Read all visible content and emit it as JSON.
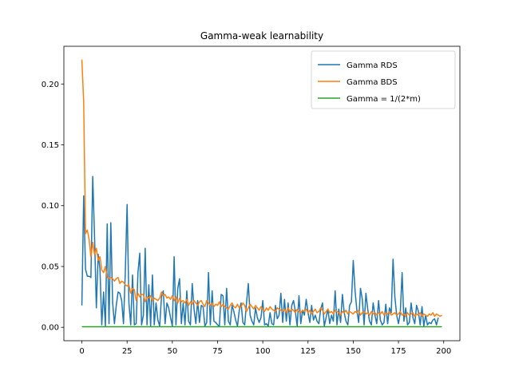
{
  "chart_data": {
    "type": "line",
    "title": "Gamma-weak learnability",
    "xlabel": "",
    "ylabel": "",
    "xlim": [
      -9.95,
      208.95
    ],
    "ylim": [
      -0.011,
      0.231
    ],
    "xticks": [
      0,
      25,
      50,
      75,
      100,
      125,
      150,
      175,
      200
    ],
    "xtick_labels": [
      "0",
      "25",
      "50",
      "75",
      "100",
      "125",
      "150",
      "175",
      "200"
    ],
    "yticks": [
      0.0,
      0.05,
      0.1,
      0.15,
      0.2
    ],
    "ytick_labels": [
      "0.00",
      "0.05",
      "0.10",
      "0.15",
      "0.20"
    ],
    "grid": false,
    "legend": {
      "placement": "upper-right"
    },
    "series": [
      {
        "name": "Gamma RDS",
        "color": "#1f77b4",
        "y": [
          0.018,
          0.108,
          0.048,
          0.042,
          0.042,
          0.041,
          0.124,
          0.075,
          0.016,
          0.06,
          0.048,
          0.002,
          0.029,
          0.001,
          0.085,
          0.003,
          0.086,
          0.02,
          0.003,
          0.018,
          0.029,
          0.028,
          0.022,
          0.003,
          0.045,
          0.101,
          0.02,
          0.002,
          0.043,
          0.002,
          0.003,
          0.045,
          0.061,
          0.002,
          0.01,
          0.065,
          0.002,
          0.035,
          0.001,
          0.043,
          0.002,
          0.02,
          0.006,
          0.001,
          0.025,
          0.03,
          0.003,
          0.02,
          0.016,
          0.008,
          0.001,
          0.058,
          0.002,
          0.032,
          0.04,
          0.003,
          0.02,
          0.002,
          0.03,
          0.005,
          0.002,
          0.036,
          0.015,
          0.003,
          0.022,
          0.004,
          0.018,
          0.017,
          0.001,
          0.004,
          0.045,
          0.002,
          0.03,
          0.005,
          0.004,
          0.002,
          0.001,
          0.027,
          0.026,
          0.002,
          0.032,
          0.005,
          0.002,
          0.018,
          0.013,
          0.006,
          0.001,
          0.014,
          0.02,
          0.004,
          0.002,
          0.02,
          0.036,
          0.01,
          0.005,
          0.002,
          0.016,
          0.008,
          0.004,
          0.008,
          0.022,
          0.002,
          0.003,
          0.001,
          0.012,
          0.003,
          0.002,
          0.018,
          0.007,
          0.01,
          0.028,
          0.004,
          0.023,
          0.005,
          0.02,
          0.002,
          0.018,
          0.022,
          0.013,
          0.001,
          0.026,
          0.003,
          0.014,
          0.01,
          0.023,
          0.012,
          0.004,
          0.018,
          0.006,
          0.01,
          0.005,
          0.003,
          0.015,
          0.02,
          0.001,
          0.008,
          0.015,
          0.003,
          0.01,
          0.005,
          0.03,
          0.002,
          0.015,
          0.004,
          0.027,
          0.012,
          0.005,
          0.002,
          0.018,
          0.021,
          0.055,
          0.03,
          0.014,
          0.004,
          0.032,
          0.023,
          0.002,
          0.028,
          0.015,
          0.005,
          0.002,
          0.02,
          0.01,
          0.003,
          0.022,
          0.006,
          0.002,
          0.004,
          0.019,
          0.003,
          0.016,
          0.012,
          0.056,
          0.025,
          0.01,
          0.003,
          0.012,
          0.045,
          0.005,
          0.016,
          0.002,
          0.004,
          0.02,
          0.008,
          0.003,
          0.018,
          0.013,
          0.002,
          0.017,
          0.001,
          0.01,
          0.002,
          0.004,
          0.003,
          0.006,
          0.007,
          0.002,
          0.008
        ]
      },
      {
        "name": "Gamma BDS",
        "color": "#ff7f0e",
        "y": [
          0.22,
          0.185,
          0.077,
          0.08,
          0.072,
          0.058,
          0.07,
          0.06,
          0.065,
          0.055,
          0.058,
          0.047,
          0.045,
          0.05,
          0.041,
          0.04,
          0.041,
          0.04,
          0.038,
          0.04,
          0.041,
          0.036,
          0.038,
          0.037,
          0.035,
          0.034,
          0.035,
          0.028,
          0.032,
          0.031,
          0.022,
          0.028,
          0.025,
          0.027,
          0.027,
          0.021,
          0.025,
          0.024,
          0.026,
          0.022,
          0.024,
          0.023,
          0.022,
          0.024,
          0.029,
          0.026,
          0.027,
          0.024,
          0.025,
          0.023,
          0.026,
          0.022,
          0.025,
          0.02,
          0.024,
          0.021,
          0.022,
          0.02,
          0.023,
          0.018,
          0.021,
          0.019,
          0.022,
          0.02,
          0.018,
          0.021,
          0.022,
          0.019,
          0.017,
          0.022,
          0.02,
          0.018,
          0.02,
          0.017,
          0.019,
          0.018,
          0.021,
          0.017,
          0.019,
          0.017,
          0.016,
          0.015,
          0.018,
          0.02,
          0.017,
          0.016,
          0.019,
          0.016,
          0.017,
          0.02,
          0.018,
          0.013,
          0.016,
          0.019,
          0.017,
          0.015,
          0.018,
          0.016,
          0.014,
          0.017,
          0.015,
          0.013,
          0.016,
          0.014,
          0.017,
          0.015,
          0.014,
          0.013,
          0.016,
          0.015,
          0.014,
          0.013,
          0.015,
          0.012,
          0.016,
          0.013,
          0.015,
          0.014,
          0.012,
          0.015,
          0.013,
          0.012,
          0.014,
          0.013,
          0.015,
          0.012,
          0.014,
          0.011,
          0.013,
          0.015,
          0.012,
          0.013,
          0.016,
          0.014,
          0.011,
          0.013,
          0.015,
          0.012,
          0.013,
          0.011,
          0.014,
          0.013,
          0.012,
          0.01,
          0.013,
          0.012,
          0.014,
          0.011,
          0.013,
          0.012,
          0.011,
          0.013,
          0.012,
          0.014,
          0.01,
          0.012,
          0.013,
          0.011,
          0.012,
          0.01,
          0.013,
          0.011,
          0.012,
          0.01,
          0.012,
          0.011,
          0.013,
          0.01,
          0.012,
          0.011,
          0.013,
          0.01,
          0.011,
          0.012,
          0.01,
          0.011,
          0.013,
          0.01,
          0.011,
          0.009,
          0.012,
          0.01,
          0.011,
          0.012,
          0.009,
          0.011,
          0.01,
          0.012,
          0.009,
          0.011,
          0.01,
          0.009,
          0.011,
          0.01,
          0.012,
          0.009,
          0.011,
          0.01,
          0.009,
          0.01
        ]
      },
      {
        "name": "Gamma = 1/(2*m)",
        "color": "#2ca02c",
        "y": [
          0.0005,
          0.0005
        ]
      }
    ]
  }
}
